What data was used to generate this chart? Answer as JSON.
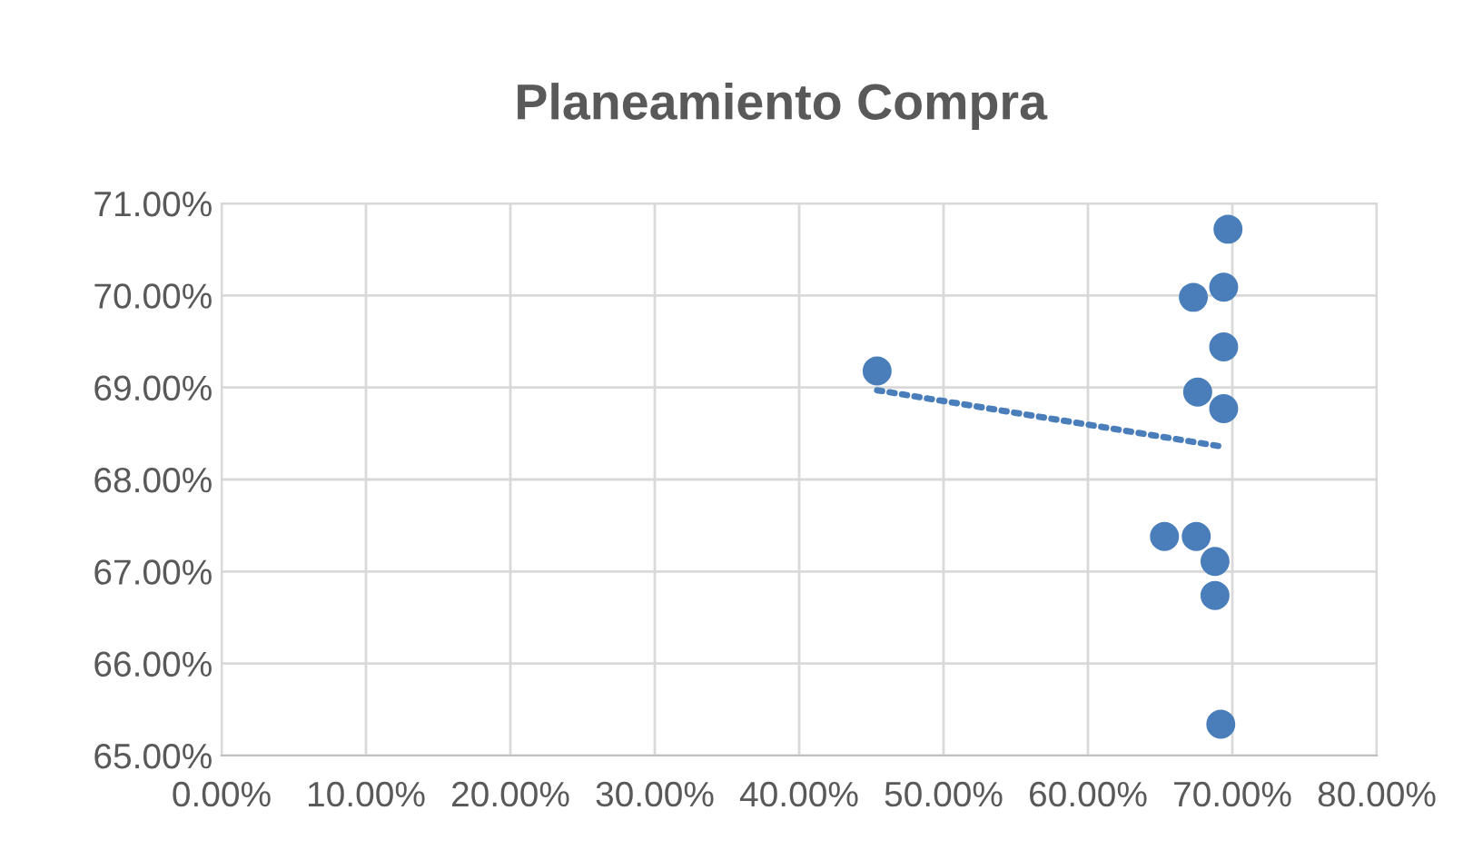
{
  "chart_data": {
    "type": "scatter",
    "title": "Planeamiento Compra",
    "marker": "circle",
    "grid": true,
    "legend": false,
    "series": [
      {
        "color": "#4a7ebb",
        "x": [
          45.4,
          69.7,
          69.4,
          67.3,
          69.4,
          67.6,
          69.4,
          65.3,
          67.5,
          68.8,
          68.8,
          69.2
        ],
        "values": [
          69.18,
          70.72,
          70.09,
          69.98,
          69.44,
          68.95,
          68.77,
          67.38,
          67.38,
          67.11,
          66.74,
          65.34
        ]
      },
      {
        "type": "line",
        "color": "#4a7ebb",
        "line_style": "dotted",
        "marker": "none",
        "x": [
          45.4,
          69.2
        ],
        "values": [
          68.97,
          68.36
        ]
      }
    ],
    "xlim": [
      0,
      80
    ],
    "ylim": [
      65,
      71
    ],
    "xticks": [
      {
        "value": 0,
        "label": "0.00%"
      },
      {
        "value": 10,
        "label": "10.00%"
      },
      {
        "value": 20,
        "label": "20.00%"
      },
      {
        "value": 30,
        "label": "30.00%"
      },
      {
        "value": 40,
        "label": "40.00%"
      },
      {
        "value": 50,
        "label": "50.00%"
      },
      {
        "value": 60,
        "label": "60.00%"
      },
      {
        "value": 70,
        "label": "70.00%"
      },
      {
        "value": 80,
        "label": "80.00%"
      }
    ],
    "yticks": [
      {
        "value": 65,
        "label": "65.00%"
      },
      {
        "value": 66,
        "label": "66.00%"
      },
      {
        "value": 67,
        "label": "67.00%"
      },
      {
        "value": 68,
        "label": "68.00%"
      },
      {
        "value": 69,
        "label": "69.00%"
      },
      {
        "value": 70,
        "label": "70.00%"
      },
      {
        "value": 71,
        "label": "71.00%"
      }
    ]
  }
}
